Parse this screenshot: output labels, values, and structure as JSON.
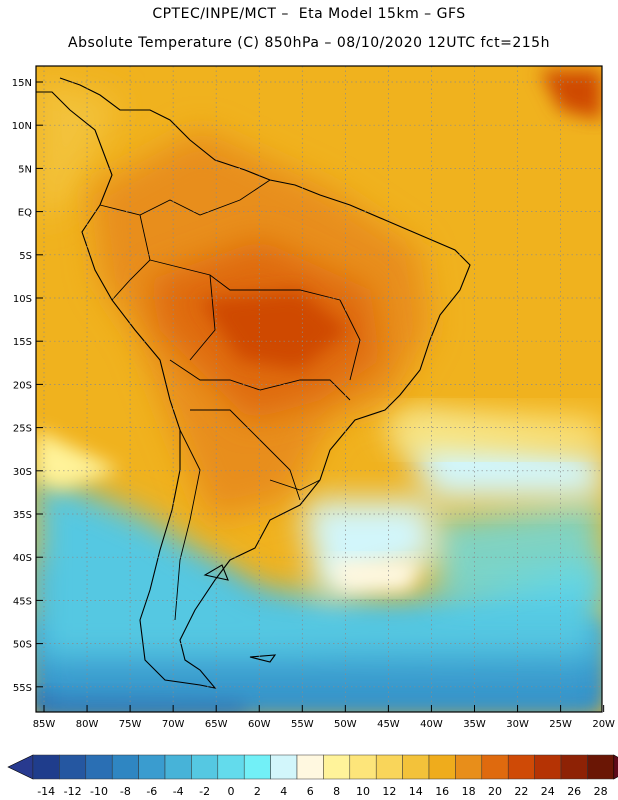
{
  "header": {
    "line1": "CPTEC/INPE/MCT –  Eta Model 15km – GFS",
    "line2": "Absolute Temperature (C) 850hPa – 08/10/2020 12UTC fct=215h"
  },
  "map": {
    "lon_labels": [
      "85W",
      "80W",
      "75W",
      "70W",
      "65W",
      "60W",
      "55W",
      "50W",
      "45W",
      "40W",
      "35W",
      "30W",
      "25W",
      "20W"
    ],
    "lat_labels": [
      "15N",
      "10N",
      "5N",
      "EQ",
      "5S",
      "10S",
      "15S",
      "20S",
      "25S",
      "30S",
      "35S",
      "40S",
      "45S",
      "50S",
      "55S"
    ]
  },
  "legend": {
    "labels": [
      "-14",
      "-12",
      "-10",
      "-8",
      "-6",
      "-4",
      "-2",
      "0",
      "2",
      "4",
      "6",
      "8",
      "10",
      "12",
      "14",
      "16",
      "18",
      "20",
      "22",
      "24",
      "26",
      "28"
    ],
    "colors": [
      "#1f3d8c",
      "#2557a1",
      "#2a6fb4",
      "#2f86c2",
      "#3a9ccf",
      "#47b3d8",
      "#55c8e2",
      "#63dbec",
      "#72f0f7",
      "#d2f6fb",
      "#fff8e0",
      "#fff39a",
      "#fde57a",
      "#f9d55a",
      "#f3c23a",
      "#efac1c",
      "#e88e1a",
      "#df6a0e",
      "#cf4a06",
      "#b53304",
      "#8e2205",
      "#6a1605"
    ],
    "under_color": "#283a8f",
    "over_color": "#5e0a1a"
  }
}
